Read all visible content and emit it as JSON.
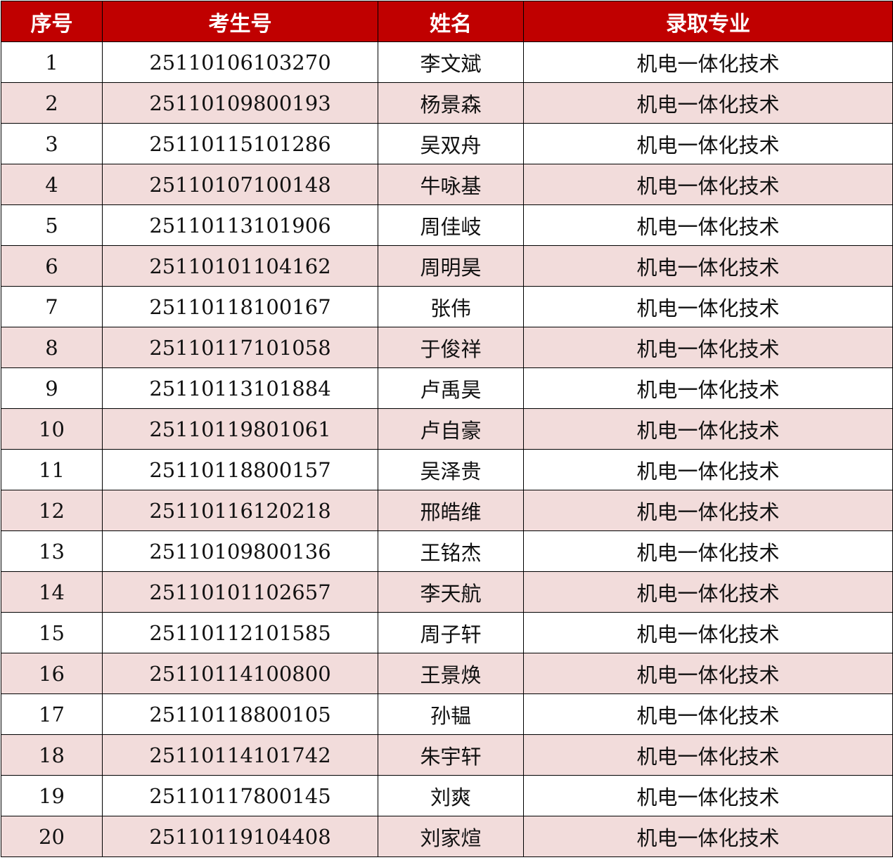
{
  "colors": {
    "header_bg": "#c00000",
    "header_text": "#ffffff",
    "stripe": "#f2dcdb"
  },
  "headers": [
    "序号",
    "考生号",
    "姓名",
    "录取专业"
  ],
  "rows": [
    [
      "1",
      "25110106103270",
      "李文斌",
      "机电一体化技术"
    ],
    [
      "2",
      "25110109800193",
      "杨景森",
      "机电一体化技术"
    ],
    [
      "3",
      "25110115101286",
      "吴双舟",
      "机电一体化技术"
    ],
    [
      "4",
      "25110107100148",
      "牛咏基",
      "机电一体化技术"
    ],
    [
      "5",
      "25110113101906",
      "周佳岐",
      "机电一体化技术"
    ],
    [
      "6",
      "25110101104162",
      "周明昊",
      "机电一体化技术"
    ],
    [
      "7",
      "25110118100167",
      "张伟",
      "机电一体化技术"
    ],
    [
      "8",
      "25110117101058",
      "于俊祥",
      "机电一体化技术"
    ],
    [
      "9",
      "25110113101884",
      "卢禹昊",
      "机电一体化技术"
    ],
    [
      "10",
      "25110119801061",
      "卢自豪",
      "机电一体化技术"
    ],
    [
      "11",
      "25110118800157",
      "吴泽贵",
      "机电一体化技术"
    ],
    [
      "12",
      "25110116120218",
      "邢皓维",
      "机电一体化技术"
    ],
    [
      "13",
      "25110109800136",
      "王铭杰",
      "机电一体化技术"
    ],
    [
      "14",
      "25110101102657",
      "李天航",
      "机电一体化技术"
    ],
    [
      "15",
      "25110112101585",
      "周子轩",
      "机电一体化技术"
    ],
    [
      "16",
      "25110114100800",
      "王景焕",
      "机电一体化技术"
    ],
    [
      "17",
      "25110118800105",
      "孙韫",
      "机电一体化技术"
    ],
    [
      "18",
      "25110114101742",
      "朱宇轩",
      "机电一体化技术"
    ],
    [
      "19",
      "25110117800145",
      "刘爽",
      "机电一体化技术"
    ],
    [
      "20",
      "25110119104408",
      "刘家煊",
      "机电一体化技术"
    ]
  ]
}
